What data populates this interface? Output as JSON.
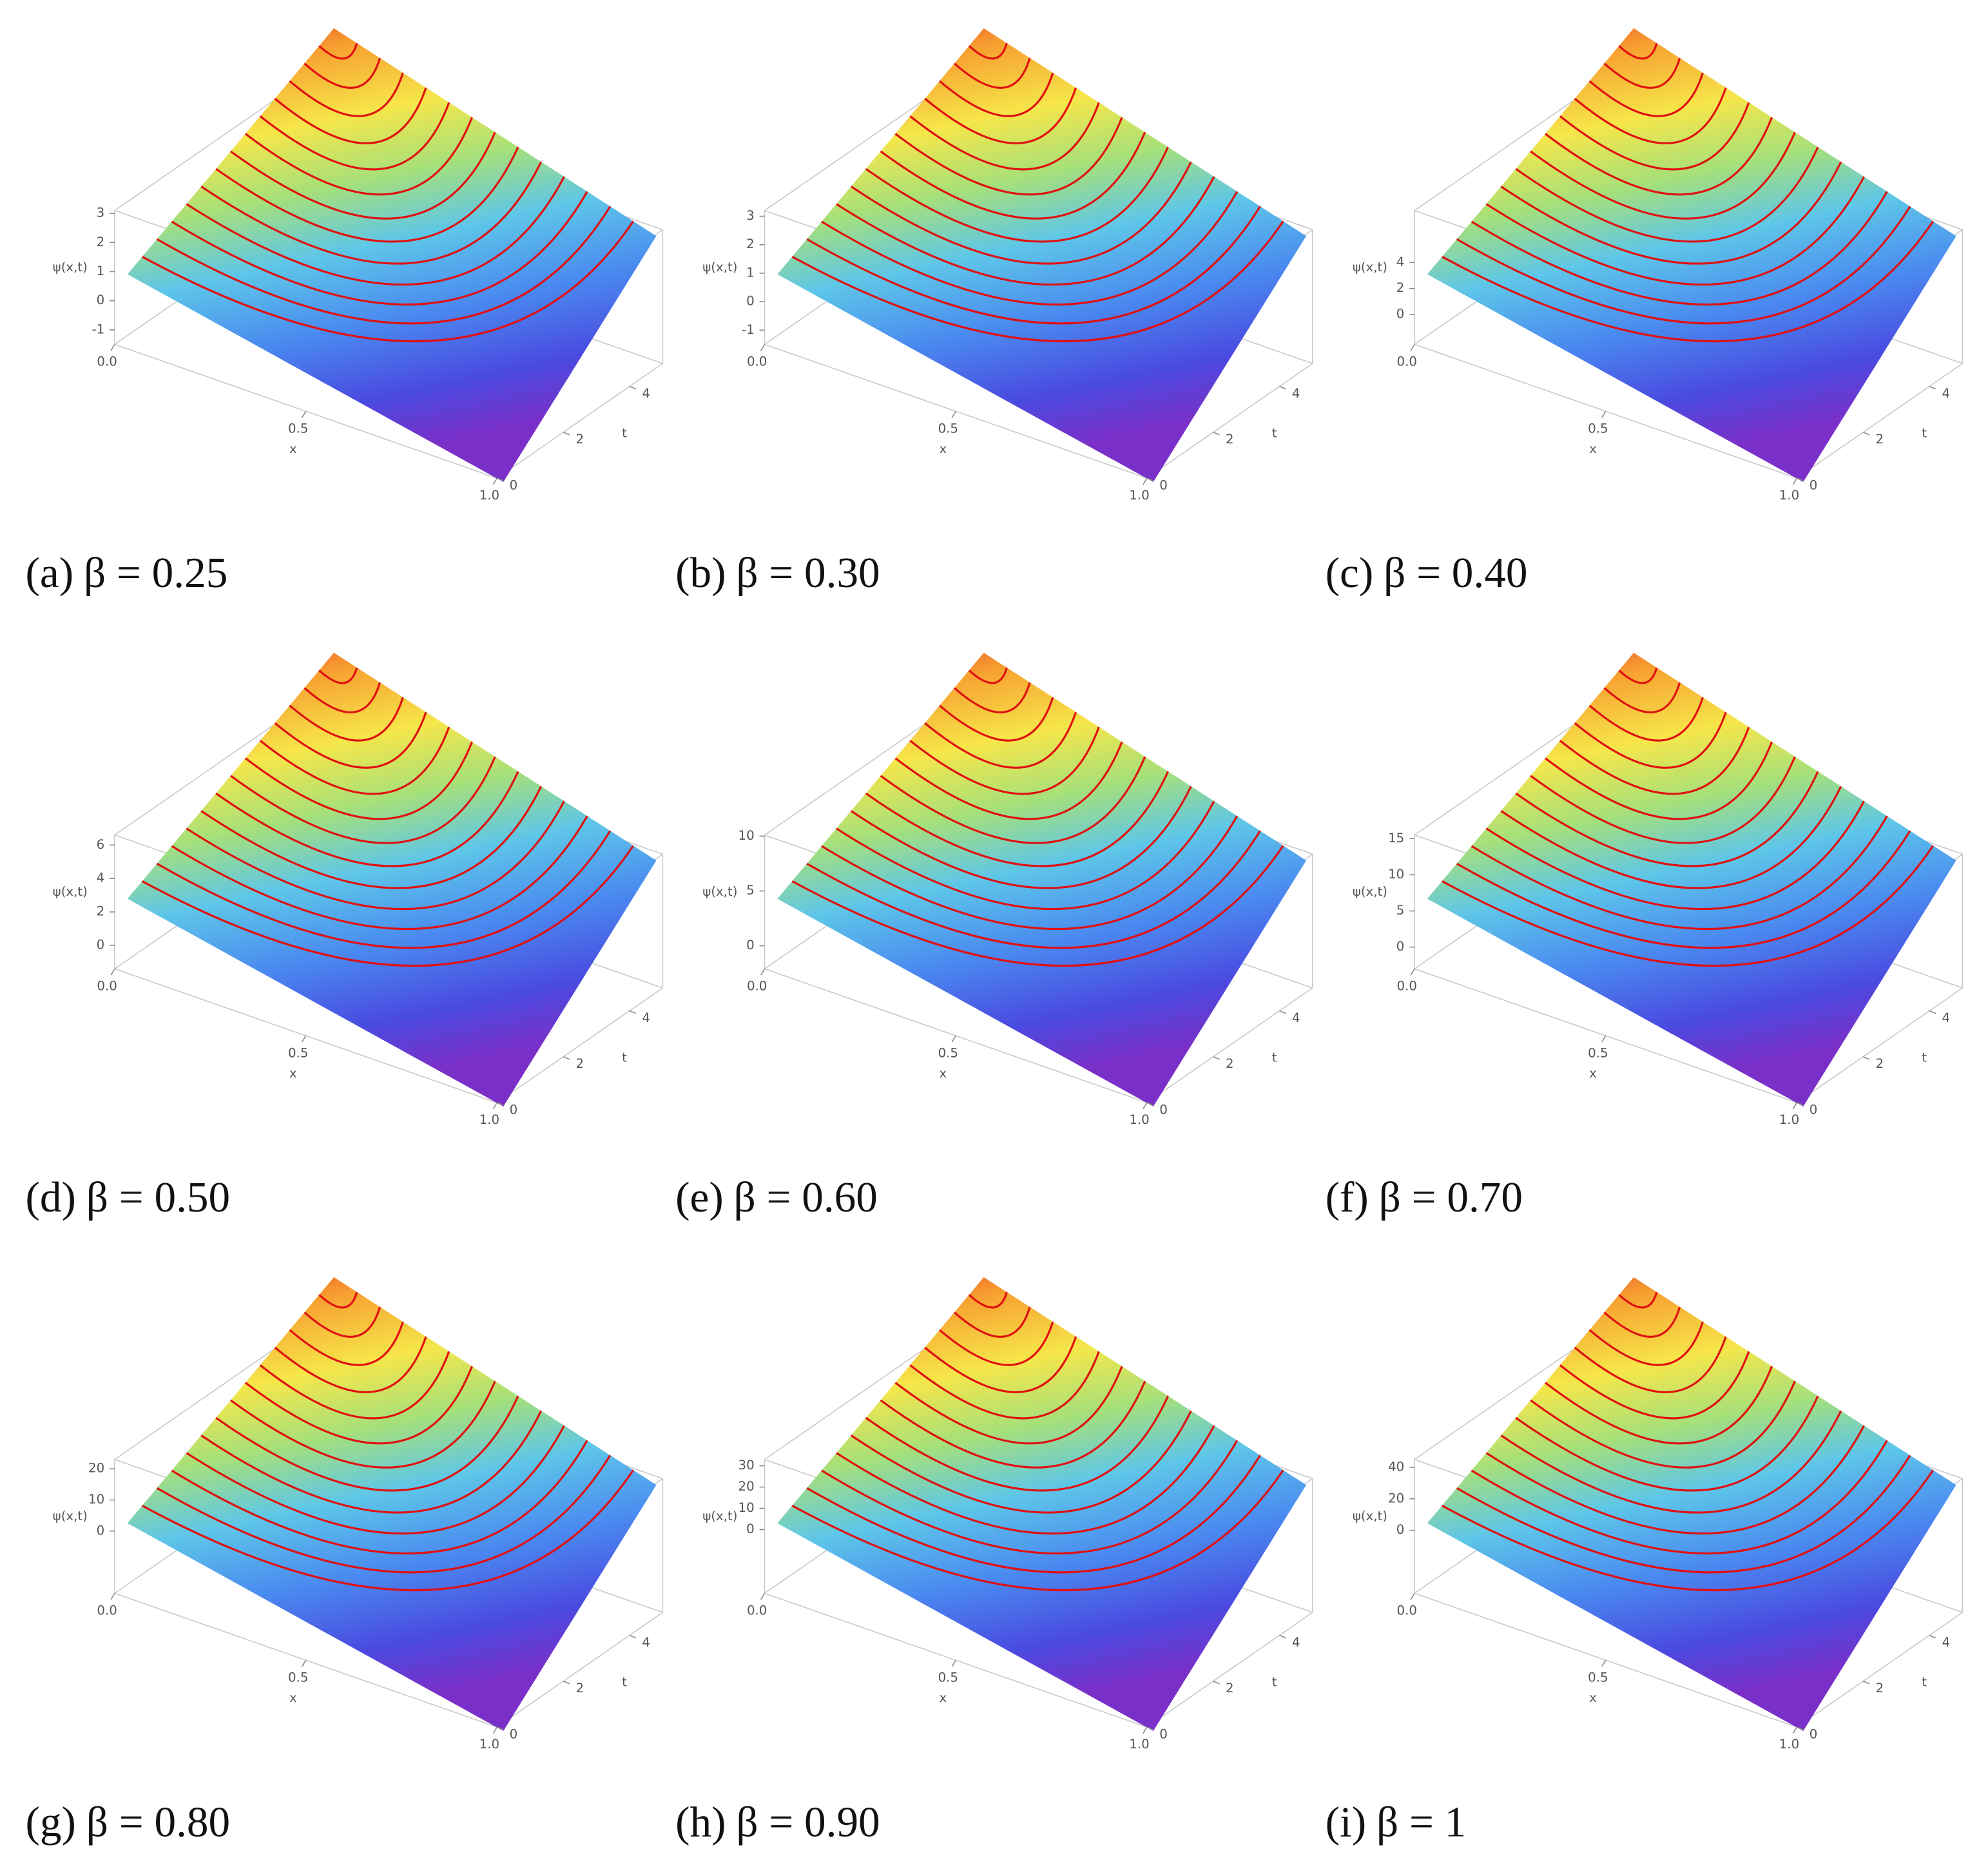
{
  "chart_data": [
    {
      "type": "surface",
      "caption_label": "(a)",
      "caption": "β = 0.25",
      "xlabel": "x",
      "ylabel": "t",
      "zlabel": "ψ(x,t)",
      "xlim": [
        0,
        1
      ],
      "ylim": [
        0,
        5
      ],
      "zlim": [
        -1.5,
        3.1
      ],
      "xticks": [
        {
          "value": 0,
          "label": "0.0"
        },
        {
          "value": 0.5,
          "label": "0.5"
        },
        {
          "value": 1,
          "label": "1.0"
        }
      ],
      "yticks": [
        0,
        2,
        4
      ],
      "zticks": [
        -1,
        0,
        1,
        2,
        3
      ]
    },
    {
      "type": "surface",
      "caption_label": "(b)",
      "caption": "β = 0.30",
      "xlabel": "x",
      "ylabel": "t",
      "zlabel": "ψ(x,t)",
      "xlim": [
        0,
        1
      ],
      "ylim": [
        0,
        5
      ],
      "zlim": [
        -1.5,
        3.2
      ],
      "xticks": [
        {
          "value": 0,
          "label": "0.0"
        },
        {
          "value": 0.5,
          "label": "0.5"
        },
        {
          "value": 1,
          "label": "1.0"
        }
      ],
      "yticks": [
        0,
        2,
        4
      ],
      "zticks": [
        -1,
        0,
        1,
        2,
        3
      ]
    },
    {
      "type": "surface",
      "caption_label": "(c)",
      "caption": "β = 0.40",
      "xlabel": "x",
      "ylabel": "t",
      "zlabel": "ψ(x,t)",
      "xlim": [
        0,
        1
      ],
      "ylim": [
        0,
        5
      ],
      "zlim": [
        -2.3,
        8
      ],
      "xticks": [
        {
          "value": 0,
          "label": "0.0"
        },
        {
          "value": 0.5,
          "label": "0.5"
        },
        {
          "value": 1,
          "label": "1.0"
        }
      ],
      "yticks": [
        0,
        2,
        4
      ],
      "zticks": [
        0,
        2,
        4
      ]
    },
    {
      "type": "surface",
      "caption_label": "(d)",
      "caption": "β = 0.50",
      "xlabel": "x",
      "ylabel": "t",
      "zlabel": "ψ(x,t)",
      "xlim": [
        0,
        1
      ],
      "ylim": [
        0,
        5
      ],
      "zlim": [
        -1.4,
        6.6
      ],
      "xticks": [
        {
          "value": 0,
          "label": "0.0"
        },
        {
          "value": 0.5,
          "label": "0.5"
        },
        {
          "value": 1,
          "label": "1.0"
        }
      ],
      "yticks": [
        0,
        2,
        4
      ],
      "zticks": [
        0,
        2,
        4,
        6
      ]
    },
    {
      "type": "surface",
      "caption_label": "(e)",
      "caption": "β = 0.60",
      "xlabel": "x",
      "ylabel": "t",
      "zlabel": "ψ(x,t)",
      "xlim": [
        0,
        1
      ],
      "ylim": [
        0,
        5
      ],
      "zlim": [
        -2.1,
        10.1
      ],
      "xticks": [
        {
          "value": 0,
          "label": "0.0"
        },
        {
          "value": 0.5,
          "label": "0.5"
        },
        {
          "value": 1,
          "label": "1.0"
        }
      ],
      "yticks": [
        0,
        2,
        4
      ],
      "zticks": [
        0,
        5,
        10
      ]
    },
    {
      "type": "surface",
      "caption_label": "(f)",
      "caption": "β = 0.70",
      "xlabel": "x",
      "ylabel": "t",
      "zlabel": "ψ(x,t)",
      "xlim": [
        0,
        1
      ],
      "ylim": [
        0,
        5
      ],
      "zlim": [
        -3,
        15.5
      ],
      "xticks": [
        {
          "value": 0,
          "label": "0.0"
        },
        {
          "value": 0.5,
          "label": "0.5"
        },
        {
          "value": 1,
          "label": "1.0"
        }
      ],
      "yticks": [
        0,
        2,
        4
      ],
      "zticks": [
        0,
        5,
        10,
        15
      ]
    },
    {
      "type": "surface",
      "caption_label": "(g)",
      "caption": "β = 0.80",
      "xlabel": "x",
      "ylabel": "t",
      "zlabel": "ψ(x,t)",
      "xlim": [
        0,
        1
      ],
      "ylim": [
        0,
        5
      ],
      "zlim": [
        -20,
        23
      ],
      "xticks": [
        {
          "value": 0,
          "label": "0.0"
        },
        {
          "value": 0.5,
          "label": "0.5"
        },
        {
          "value": 1,
          "label": "1.0"
        }
      ],
      "yticks": [
        0,
        2,
        4
      ],
      "zticks": [
        0,
        10,
        20
      ]
    },
    {
      "type": "surface",
      "caption_label": "(h)",
      "caption": "β = 0.90",
      "xlabel": "x",
      "ylabel": "t",
      "zlabel": "ψ(x,t)",
      "xlim": [
        0,
        1
      ],
      "ylim": [
        0,
        5
      ],
      "zlim": [
        -30,
        33
      ],
      "xticks": [
        {
          "value": 0,
          "label": "0.0"
        },
        {
          "value": 0.5,
          "label": "0.5"
        },
        {
          "value": 1,
          "label": "1.0"
        }
      ],
      "yticks": [
        0,
        2,
        4
      ],
      "zticks": [
        0,
        10,
        20,
        30
      ]
    },
    {
      "type": "surface",
      "caption_label": "(i)",
      "caption": "β = 1",
      "xlabel": "x",
      "ylabel": "t",
      "zlabel": "ψ(x,t)",
      "xlim": [
        0,
        1
      ],
      "ylim": [
        0,
        5
      ],
      "zlim": [
        -40,
        45
      ],
      "xticks": [
        {
          "value": 0,
          "label": "0.0"
        },
        {
          "value": 0.5,
          "label": "0.5"
        },
        {
          "value": 1,
          "label": "1.0"
        }
      ],
      "yticks": [
        0,
        2,
        4
      ],
      "zticks": [
        0,
        20,
        40
      ]
    }
  ]
}
